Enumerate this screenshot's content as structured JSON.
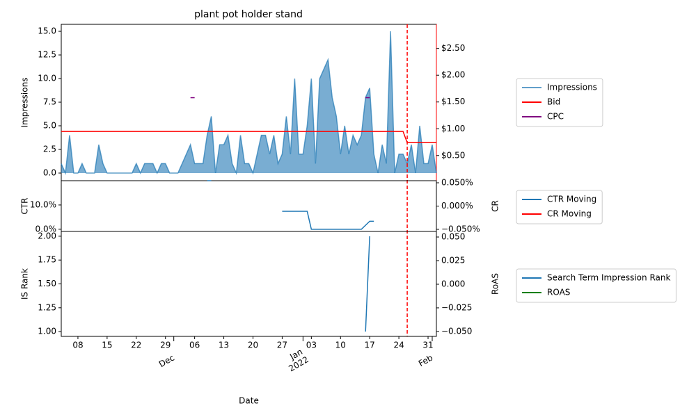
{
  "chart_data": [
    {
      "type": "area",
      "title": "plant pot holder stand",
      "ylabel": "Impressions",
      "xlim": [
        "2021-11-04",
        "2022-02-02"
      ],
      "ylim": [
        -0.81,
        15.74
      ],
      "yticks": [
        {
          "value": 0,
          "label": "0.0"
        },
        {
          "value": 2.5,
          "label": "2.5"
        },
        {
          "value": 5,
          "label": "5.0"
        },
        {
          "value": 7.5,
          "label": "7.5"
        },
        {
          "value": 10,
          "label": "10.0"
        },
        {
          "value": 12.5,
          "label": "12.5"
        },
        {
          "value": 15,
          "label": "15.0"
        }
      ],
      "ytick_color": "blue",
      "y2lim": [
        0.03,
        2.95
      ],
      "y2ticks": [
        {
          "value": 0.5,
          "label": "$0.50"
        },
        {
          "value": 1,
          "label": "$1.00"
        },
        {
          "value": 1.5,
          "label": "$1.50"
        },
        {
          "value": 2,
          "label": "$2.00"
        },
        {
          "value": 2.5,
          "label": "$2.50"
        }
      ],
      "y2tick_color": "black",
      "y2_spine_color": "red",
      "vline": {
        "x": "2022-01-26",
        "color": "red"
      },
      "legend": "outside right",
      "series": [
        {
          "name": "Impressions",
          "type": "area",
          "color": "#1f77b4",
          "x": [
            "2021-11-04",
            "2021-11-05",
            "2021-11-06",
            "2021-11-07",
            "2021-11-08",
            "2021-11-09",
            "2021-11-10",
            "2021-11-11",
            "2021-11-12",
            "2021-11-13",
            "2021-11-14",
            "2021-11-15",
            "2021-11-16",
            "2021-11-17",
            "2021-11-18",
            "2021-11-19",
            "2021-11-20",
            "2021-11-21",
            "2021-11-22",
            "2021-11-23",
            "2021-11-24",
            "2021-11-25",
            "2021-11-26",
            "2021-11-27",
            "2021-11-28",
            "2021-11-29",
            "2021-11-30",
            "2021-12-01",
            "2021-12-02",
            "2021-12-03",
            "2021-12-04",
            "2021-12-05",
            "2021-12-06",
            "2021-12-07",
            "2021-12-08",
            "2021-12-09",
            "2021-12-10",
            "2021-12-11",
            "2021-12-12",
            "2021-12-13",
            "2021-12-14",
            "2021-12-15",
            "2021-12-16",
            "2021-12-17",
            "2021-12-18",
            "2021-12-19",
            "2021-12-20",
            "2021-12-21",
            "2021-12-22",
            "2021-12-23",
            "2021-12-24",
            "2021-12-25",
            "2021-12-26",
            "2021-12-27",
            "2021-12-28",
            "2021-12-29",
            "2021-12-30",
            "2021-12-31",
            "2022-01-01",
            "2022-01-02",
            "2022-01-03",
            "2022-01-04",
            "2022-01-05",
            "2022-01-06",
            "2022-01-07",
            "2022-01-08",
            "2022-01-09",
            "2022-01-10",
            "2022-01-11",
            "2022-01-12",
            "2022-01-13",
            "2022-01-14",
            "2022-01-15",
            "2022-01-16",
            "2022-01-17",
            "2022-01-18",
            "2022-01-19",
            "2022-01-20",
            "2022-01-21",
            "2022-01-22",
            "2022-01-23",
            "2022-01-24",
            "2022-01-25",
            "2022-01-26",
            "2022-01-27",
            "2022-01-28",
            "2022-01-29",
            "2022-01-30",
            "2022-01-31",
            "2022-02-01",
            "2022-02-02"
          ],
          "values": [
            1,
            0,
            4,
            0,
            0,
            1,
            0,
            0,
            0,
            3,
            1,
            0,
            0,
            0,
            0,
            0,
            0,
            0,
            1,
            0,
            1,
            1,
            1,
            0,
            1,
            1,
            0,
            0,
            0,
            1,
            2,
            3,
            1,
            1,
            1,
            4,
            6,
            0,
            3,
            3,
            4,
            1,
            0,
            4,
            1,
            1,
            0,
            2,
            4,
            4,
            2,
            4,
            1,
            2,
            6,
            2,
            10,
            2,
            2,
            5,
            10,
            1,
            10,
            11,
            12,
            8,
            6,
            2,
            5,
            2,
            4,
            3,
            4,
            8,
            9,
            2,
            0,
            3,
            1,
            15,
            0,
            2,
            2,
            1,
            3,
            0,
            5,
            1,
            1,
            3,
            0
          ]
        },
        {
          "name": "Bid",
          "type": "line",
          "axis": "y2",
          "color": "red",
          "x": [
            "2021-11-04",
            "2022-01-25",
            "2022-01-26",
            "2022-02-02"
          ],
          "values": [
            0.95,
            0.95,
            0.74,
            0.74
          ]
        },
        {
          "name": "CPC",
          "type": "line",
          "axis": "y2",
          "color": "purple",
          "x": [
            "2021-12-05",
            "2021-12-06",
            "2021-12-07",
            "2022-01-16",
            "2022-01-17"
          ],
          "values": [
            1.58,
            1.58,
            null,
            1.58,
            1.58
          ]
        }
      ]
    },
    {
      "type": "line",
      "ylabel": "CTR",
      "y2label": "CR",
      "xlim": [
        "2021-11-04",
        "2022-02-02"
      ],
      "ylim": [
        -0.9,
        20
      ],
      "yticks": [
        {
          "value": 0,
          "label": "0.0%"
        },
        {
          "value": 10,
          "label": "10.0%"
        }
      ],
      "ytick_color": "blue",
      "y2lim": [
        -0.0545,
        0.0545
      ],
      "y2ticks": [
        {
          "value": -0.05,
          "label": "−0.050%"
        },
        {
          "value": 0,
          "label": "0.000%"
        },
        {
          "value": 0.05,
          "label": "0.050%"
        }
      ],
      "y2tick_color": "red",
      "legend": "outside right",
      "series": [
        {
          "name": "CTR Moving",
          "color": "#1f77b4",
          "x": [
            "2021-12-09",
            "2021-12-10",
            "2021-12-11",
            "2021-12-27",
            "2022-01-02",
            "2022-01-03",
            "2022-01-15",
            "2022-01-17",
            "2022-01-18"
          ],
          "values": [
            20,
            20,
            null,
            7.4,
            7.4,
            0,
            0,
            3.3,
            3.3
          ]
        },
        {
          "name": "CR Moving",
          "axis": "y2",
          "color": "red",
          "x": [],
          "values": []
        }
      ]
    },
    {
      "type": "line",
      "ylabel": "IS Rank",
      "y2label": "RoAS",
      "xlabel": "Date",
      "xlim": [
        "2021-11-04",
        "2022-02-02"
      ],
      "xticks": [
        {
          "value": "2021-11-08",
          "label": "08"
        },
        {
          "value": "2021-11-15",
          "label": "15"
        },
        {
          "value": "2021-11-22",
          "label": "22"
        },
        {
          "value": "2021-11-29",
          "label": "29"
        },
        {
          "value": "2021-12-06",
          "label": "06"
        },
        {
          "value": "2021-12-13",
          "label": "13"
        },
        {
          "value": "2021-12-20",
          "label": "20"
        },
        {
          "value": "2021-12-27",
          "label": "27"
        },
        {
          "value": "2022-01-03",
          "label": "03"
        },
        {
          "value": "2022-01-10",
          "label": "10"
        },
        {
          "value": "2022-01-17",
          "label": "17"
        },
        {
          "value": "2022-01-24",
          "label": "24"
        },
        {
          "value": "2022-01-31",
          "label": "31"
        }
      ],
      "xticks_major": [
        {
          "value": "2021-12-01",
          "label": "Dec"
        },
        {
          "value": "2022-01-01",
          "label": "Jan\n2022"
        },
        {
          "value": "2022-02-01",
          "label": "Feb"
        }
      ],
      "ylim": [
        0.95,
        2.05
      ],
      "yticks": [
        {
          "value": 1,
          "label": "1.00"
        },
        {
          "value": 1.25,
          "label": "1.25"
        },
        {
          "value": 1.5,
          "label": "1.50"
        },
        {
          "value": 1.75,
          "label": "1.75"
        },
        {
          "value": 2,
          "label": "2.00"
        }
      ],
      "ytick_color": "blue",
      "y2lim": [
        -0.0552,
        0.0559
      ],
      "y2ticks": [
        {
          "value": -0.05,
          "label": "−0.050"
        },
        {
          "value": -0.025,
          "label": "−0.025"
        },
        {
          "value": 0,
          "label": "0.000"
        },
        {
          "value": 0.025,
          "label": "0.025"
        },
        {
          "value": 0.05,
          "label": "0.050"
        }
      ],
      "y2tick_color": "green",
      "legend": "outside right",
      "series": [
        {
          "name": "Search Term Impression Rank",
          "color": "#1f77b4",
          "x": [
            "2022-01-16",
            "2022-01-17"
          ],
          "values": [
            1,
            2
          ]
        },
        {
          "name": "ROAS",
          "axis": "y2",
          "color": "green",
          "x": [],
          "values": []
        }
      ]
    }
  ]
}
